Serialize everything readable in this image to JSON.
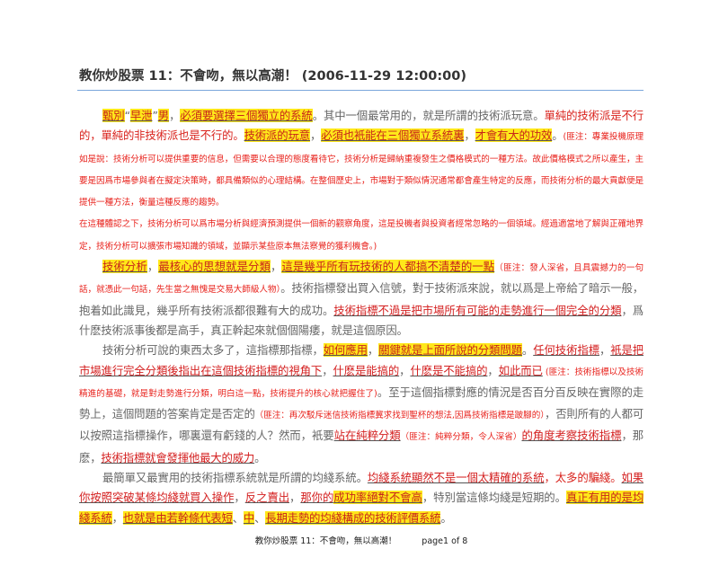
{
  "document": {
    "title": "教你炒股票 11：不會吻，無以高潮！ (2006-11-29 12:00:00)",
    "colors": {
      "rule": "#7aa7dc",
      "highlight": "#ffe81a",
      "red": "#d9231d",
      "body": "#666666"
    },
    "paragraphs": [
      {
        "indent": true,
        "segments": [
          {
            "s": "hl",
            "t": "甄別"
          },
          {
            "s": "plain",
            "t": "“"
          },
          {
            "s": "hl",
            "t": "早泄"
          },
          {
            "s": "plain",
            "t": "”"
          },
          {
            "s": "hl",
            "t": "男"
          },
          {
            "s": "plain",
            "t": "，"
          },
          {
            "s": "hl",
            "t": "必須要選擇三個獨立的系統"
          },
          {
            "s": "plain",
            "t": "。其中一個最常用的，就是所謂的技術派玩意。"
          },
          {
            "s": "red",
            "t": "單純的技術派是不行的，單純的非技術派也是不行的。"
          },
          {
            "s": "hl",
            "t": "技術派的玩意"
          },
          {
            "s": "plain",
            "t": "，"
          },
          {
            "s": "hl",
            "t": "必須也衹能在三個獨立系統裏"
          },
          {
            "s": "plain",
            "t": "，"
          },
          {
            "s": "hl",
            "t": "才會有大的功效"
          },
          {
            "s": "plain",
            "t": "。"
          },
          {
            "s": "note",
            "t": "(匪注：專業投機原理如是說：技術分析可以提供重要的信息，但需要以合理的態度看待它，技術分析是歸納重複發生之價格模式的一種方法。故此價格模式之所以產生，主要是因爲市場參與者在擬定決策時，都具備類似的心理結構。在整個歷史上，市場對于類似情況通常都會產生特定的反應，而技術分析的最大貢獻便是提供一種方法，衡量這種反應的趨勢。"
          }
        ]
      },
      {
        "indent": false,
        "segments": [
          {
            "s": "note",
            "t": "在這種體認之下，技術分析可以爲市場分析與經濟預測提供一個新的觀察角度，這是投機者與投資者經常忽略的一個領域。經過適當地了解與正確地界定，技術分析可以擴張市場知識的領域，並顯示某些原本無法察覺的獲利機會。)"
          }
        ]
      },
      {
        "indent": true,
        "segments": [
          {
            "s": "hl",
            "t": "技術分析"
          },
          {
            "s": "plain",
            "t": "，"
          },
          {
            "s": "hl",
            "t": "最核心的思想就是分類"
          },
          {
            "s": "plain",
            "t": "，"
          },
          {
            "s": "hl",
            "t": "這是幾乎所有玩技術的人都搞不清楚的一點"
          },
          {
            "s": "note",
            "t": "（匪注：發人深省，且具震撼力的一句話，就憑此一句話，先生當之無愧是交易大師級人物）"
          },
          {
            "s": "plain",
            "t": "。技術指標發出買入信號，對于技術派來說，就以爲是上帝給了暗示一般，抱着如此識見，幾乎所有技術派都很難有大的成功。"
          },
          {
            "s": "ul",
            "t": "技術指標不過是把市場所有可能的走勢進行一個完全的分類"
          },
          {
            "s": "plain",
            "t": "，爲什麽技術派事後都是高手，真正幹起來就個個陽痿，就是這個原因。"
          }
        ]
      },
      {
        "indent": true,
        "segments": [
          {
            "s": "plain",
            "t": "技術分析可說的東西太多了，這指標那指標，"
          },
          {
            "s": "hl",
            "t": "如何應用"
          },
          {
            "s": "plain",
            "t": "，"
          },
          {
            "s": "hl",
            "t": "關鍵就是上面所說的分類問題"
          },
          {
            "s": "plain",
            "t": "。"
          },
          {
            "s": "ul",
            "t": "任何技術指標"
          },
          {
            "s": "plain",
            "t": "，"
          },
          {
            "s": "ul",
            "t": "衹是把市場進行完全分類後指出在這個技術指標的視角下"
          },
          {
            "s": "plain",
            "t": "，"
          },
          {
            "s": "ul",
            "t": "什麽是能搞的"
          },
          {
            "s": "plain",
            "t": "，"
          },
          {
            "s": "ul",
            "t": "什麽是不能搞的"
          },
          {
            "s": "plain",
            "t": "，"
          },
          {
            "s": "ul",
            "t": "如此而已"
          },
          {
            "s": "note",
            "t": " (匪注：技術指標以及技術精進的基礎，就是對走勢進行分類，明白這一點，技術提升的核心就把握住了)"
          },
          {
            "s": "plain",
            "t": "。至于這個指標對應的情況是否百分百反映在實際的走勢上，這個問題的答案肯定是否定的"
          },
          {
            "s": "note",
            "t": "（匪注：再次駁斥迷信技術指標冀求找到聖杯的想法,因爲技術指標是跛腳的）"
          },
          {
            "s": "plain",
            "t": "，否則所有的人都可以按照這指標操作，哪裏還有虧錢的人？然而，衹要"
          },
          {
            "s": "ul",
            "t": "站在純粹分類"
          },
          {
            "s": "note",
            "t": "（匪注：純粹分類，令人深省）"
          },
          {
            "s": "ul",
            "t": "的角度考察技術指標"
          },
          {
            "s": "plain",
            "t": "，那麽，"
          },
          {
            "s": "ul",
            "t": "技術指標就會發揮他最大的威力"
          },
          {
            "s": "plain",
            "t": "。"
          }
        ]
      },
      {
        "indent": true,
        "segments": [
          {
            "s": "plain",
            "t": "最簡單又最實用的技術指標系統就是所謂的均綫系統。"
          },
          {
            "s": "ul",
            "t": "均綫系統顯然不是一個太精確的系統"
          },
          {
            "s": "red",
            "t": "，太多的騙綫。"
          },
          {
            "s": "ul",
            "t": "如果你按照突破某條均綫就買入操作"
          },
          {
            "s": "plain",
            "t": "，"
          },
          {
            "s": "ul",
            "t": "反之賣出"
          },
          {
            "s": "plain",
            "t": "，"
          },
          {
            "s": "ul",
            "t": "那你的"
          },
          {
            "s": "hl",
            "t": "成功率絕對不會高"
          },
          {
            "s": "plain",
            "t": "，特別當這條均綫是短期的。"
          },
          {
            "s": "hl",
            "t": "真正有用的是均綫系統"
          },
          {
            "s": "plain",
            "t": "，"
          },
          {
            "s": "hl",
            "t": "也就是由若幹條代表短"
          },
          {
            "s": "plain",
            "t": "、"
          },
          {
            "s": "hl",
            "t": "中"
          },
          {
            "s": "plain",
            "t": "、"
          },
          {
            "s": "hl",
            "t": "長期走勢的均綫構成的技術評價系統"
          },
          {
            "s": "plain",
            "t": "。"
          }
        ]
      }
    ]
  },
  "footer": {
    "doc_title": "教你炒股票 11：不會吻，無以高潮！",
    "page": "page1 of 8"
  }
}
